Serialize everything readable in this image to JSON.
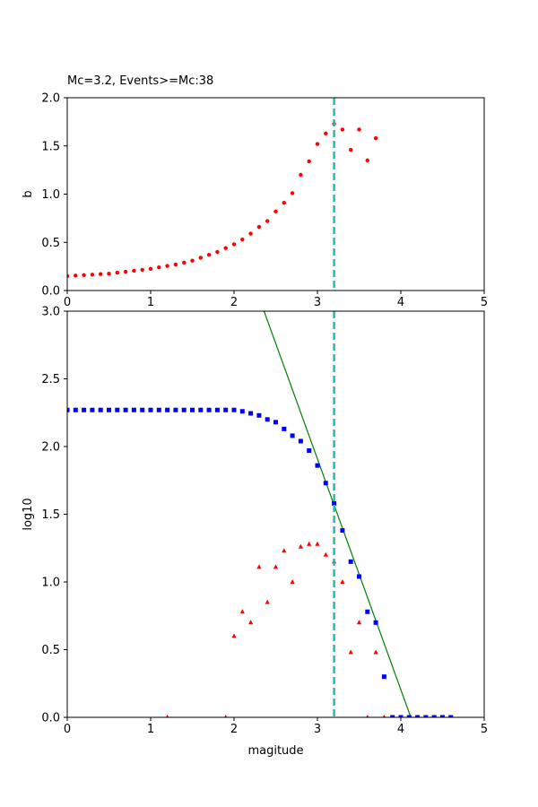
{
  "chart_data": [
    {
      "type": "scatter",
      "title": "Mc=3.2, Events>=Mc:38",
      "xlabel": "",
      "ylabel": "b",
      "xlim": [
        0,
        5
      ],
      "ylim": [
        0,
        2.0
      ],
      "xticks": [
        "0",
        "1",
        "2",
        "3",
        "4",
        "5"
      ],
      "yticks": [
        "0.0",
        "0.5",
        "1.0",
        "1.5",
        "2.0"
      ],
      "ytick_values": [
        0,
        0.5,
        1.0,
        1.5,
        2.0
      ],
      "grid": false,
      "mc_line": 3.2,
      "mc_line_color": "#20c0b0",
      "series": [
        {
          "marker": "circle",
          "color": "#ff0000",
          "x": [
            0.0,
            0.1,
            0.2,
            0.3,
            0.4,
            0.5,
            0.6,
            0.7,
            0.8,
            0.9,
            1.0,
            1.1,
            1.2,
            1.3,
            1.4,
            1.5,
            1.6,
            1.7,
            1.8,
            1.9,
            2.0,
            2.1,
            2.2,
            2.3,
            2.4,
            2.5,
            2.6,
            2.7,
            2.8,
            2.9,
            3.0,
            3.1,
            3.2,
            3.3,
            3.4,
            3.5,
            3.6,
            3.7
          ],
          "y": [
            0.15,
            0.155,
            0.16,
            0.165,
            0.17,
            0.175,
            0.185,
            0.195,
            0.205,
            0.215,
            0.225,
            0.24,
            0.255,
            0.27,
            0.29,
            0.31,
            0.34,
            0.37,
            0.4,
            0.44,
            0.48,
            0.53,
            0.59,
            0.66,
            0.72,
            0.82,
            0.91,
            1.01,
            1.2,
            1.34,
            1.52,
            1.63,
            1.73,
            1.67,
            1.46,
            1.67,
            1.35,
            1.58
          ]
        }
      ]
    },
    {
      "type": "scatter",
      "title": "",
      "xlabel": "magitude",
      "ylabel": "log10",
      "xlim": [
        0,
        5
      ],
      "ylim": [
        0,
        3.0
      ],
      "xticks": [
        "0",
        "1",
        "2",
        "3",
        "4",
        "5"
      ],
      "yticks": [
        "0.0",
        "0.5",
        "1.0",
        "1.5",
        "2.0",
        "2.5",
        "3.0"
      ],
      "ytick_values": [
        0,
        0.5,
        1.0,
        1.5,
        2.0,
        2.5,
        3.0
      ],
      "grid": false,
      "mc_line": 3.2,
      "mc_line_color": "#20c0b0",
      "fit_line": {
        "color": "#008000",
        "x": [
          2.36,
          4.12
        ],
        "y": [
          3.0,
          0.0
        ]
      },
      "series": [
        {
          "marker": "square",
          "color": "#0000ff",
          "x": [
            0.0,
            0.1,
            0.2,
            0.3,
            0.4,
            0.5,
            0.6,
            0.7,
            0.8,
            0.9,
            1.0,
            1.1,
            1.2,
            1.3,
            1.4,
            1.5,
            1.6,
            1.7,
            1.8,
            1.9,
            2.0,
            2.1,
            2.2,
            2.3,
            2.4,
            2.5,
            2.6,
            2.7,
            2.8,
            2.9,
            3.0,
            3.1,
            3.2,
            3.3,
            3.4,
            3.5,
            3.6,
            3.7,
            3.8,
            3.9,
            4.0,
            4.1,
            4.2,
            4.3,
            4.4,
            4.5,
            4.6
          ],
          "y": [
            2.27,
            2.27,
            2.27,
            2.27,
            2.27,
            2.27,
            2.27,
            2.27,
            2.27,
            2.27,
            2.27,
            2.27,
            2.27,
            2.27,
            2.27,
            2.27,
            2.27,
            2.27,
            2.27,
            2.27,
            2.27,
            2.26,
            2.245,
            2.23,
            2.2,
            2.18,
            2.13,
            2.08,
            2.04,
            1.97,
            1.86,
            1.73,
            1.58,
            1.38,
            1.15,
            1.04,
            0.78,
            0.7,
            0.3,
            0.0,
            0.0,
            0.0,
            0.0,
            0.0,
            0.0,
            0.0,
            0.0
          ]
        },
        {
          "marker": "triangle",
          "color": "#ff0000",
          "x": [
            1.2,
            1.9,
            2.0,
            2.1,
            2.2,
            2.3,
            2.4,
            2.5,
            2.6,
            2.7,
            2.8,
            2.9,
            3.0,
            3.1,
            3.2,
            3.3,
            3.4,
            3.5,
            3.6,
            3.7,
            3.8
          ],
          "y": [
            0.0,
            0.0,
            0.6,
            0.78,
            0.7,
            1.11,
            0.85,
            1.11,
            1.23,
            1.0,
            1.26,
            1.28,
            1.28,
            1.2,
            1.15,
            1.0,
            0.48,
            0.7,
            0.0,
            0.48,
            0.0
          ]
        }
      ]
    }
  ]
}
